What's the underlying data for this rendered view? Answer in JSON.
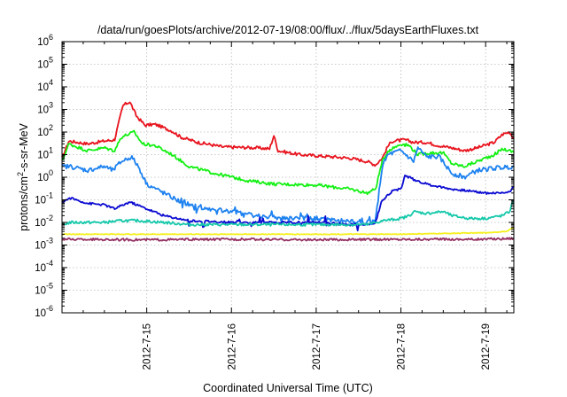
{
  "chart_data": {
    "type": "line",
    "title": "/data/run/goesPlots/archive/2012-07-19/08:00/flux/../flux/5daysEarthFluxes.txt",
    "xlabel": "Coordinated Universal Time (UTC)",
    "ylabel": {
      "prefix": "protons/cm",
      "sup": "2",
      "suffix": "-s-sr-MeV"
    },
    "x_range_days": [
      "2012-07-14 00:00",
      "2012-07-19 08:00"
    ],
    "x_ticks": [
      "2012-7-15",
      "2012-7-16",
      "2012-7-17",
      "2012-7-18",
      "2012-7-19"
    ],
    "y_scale": "log",
    "y_range_exp": [
      -6,
      6
    ],
    "y_ticks": [
      {
        "base": "10",
        "exp": "-6"
      },
      {
        "base": "10",
        "exp": "-5"
      },
      {
        "base": "10",
        "exp": "-4"
      },
      {
        "base": "10",
        "exp": "-3"
      },
      {
        "base": "10",
        "exp": "-2"
      },
      {
        "base": "10",
        "exp": "-1"
      },
      {
        "base": "10",
        "exp": "0"
      },
      {
        "base": "10",
        "exp": "1"
      },
      {
        "base": "10",
        "exp": "2"
      },
      {
        "base": "10",
        "exp": "3"
      },
      {
        "base": "10",
        "exp": "4"
      },
      {
        "base": "10",
        "exp": "5"
      },
      {
        "base": "10",
        "exp": "6"
      }
    ],
    "grid": true,
    "series": [
      {
        "color": "#e8141e",
        "noise": 0.07,
        "points": [
          [
            0.0,
            7
          ],
          [
            0.08,
            40
          ],
          [
            0.3,
            30
          ],
          [
            0.5,
            40
          ],
          [
            0.62,
            45
          ],
          [
            0.72,
            1500
          ],
          [
            0.8,
            2200
          ],
          [
            0.88,
            500
          ],
          [
            0.98,
            200
          ],
          [
            1.1,
            220
          ],
          [
            1.3,
            110
          ],
          [
            1.4,
            60
          ],
          [
            1.6,
            35
          ],
          [
            1.9,
            22
          ],
          [
            2.3,
            20
          ],
          [
            2.45,
            18
          ],
          [
            2.5,
            70
          ],
          [
            2.55,
            15
          ],
          [
            2.8,
            10
          ],
          [
            3.2,
            8
          ],
          [
            3.4,
            7
          ],
          [
            3.6,
            5
          ],
          [
            3.7,
            3.5
          ],
          [
            3.78,
            7
          ],
          [
            3.85,
            25
          ],
          [
            3.9,
            40
          ],
          [
            4.05,
            45
          ],
          [
            4.15,
            35
          ],
          [
            4.3,
            35
          ],
          [
            4.45,
            25
          ],
          [
            4.6,
            20
          ],
          [
            4.75,
            15
          ],
          [
            4.9,
            20
          ],
          [
            5.1,
            35
          ],
          [
            5.2,
            80
          ],
          [
            5.28,
            100
          ],
          [
            5.33,
            55
          ]
        ]
      },
      {
        "color": "#14f014",
        "noise": 0.07,
        "points": [
          [
            0.0,
            5
          ],
          [
            0.08,
            30
          ],
          [
            0.3,
            15
          ],
          [
            0.5,
            20
          ],
          [
            0.62,
            15
          ],
          [
            0.7,
            60
          ],
          [
            0.85,
            100
          ],
          [
            0.95,
            30
          ],
          [
            1.1,
            25
          ],
          [
            1.3,
            10
          ],
          [
            1.5,
            3
          ],
          [
            1.8,
            1.5
          ],
          [
            2.2,
            0.7
          ],
          [
            2.5,
            0.5
          ],
          [
            3.0,
            0.45
          ],
          [
            3.4,
            0.3
          ],
          [
            3.6,
            0.2
          ],
          [
            3.7,
            0.3
          ],
          [
            3.78,
            5
          ],
          [
            3.85,
            15
          ],
          [
            4.0,
            30
          ],
          [
            4.1,
            25
          ],
          [
            4.2,
            10
          ],
          [
            4.35,
            12
          ],
          [
            4.5,
            12
          ],
          [
            4.6,
            4
          ],
          [
            4.75,
            3
          ],
          [
            4.9,
            5
          ],
          [
            5.1,
            10
          ],
          [
            5.2,
            18
          ],
          [
            5.33,
            13
          ]
        ]
      },
      {
        "color": "#1e82f0",
        "noise": 0.1,
        "points": [
          [
            0.0,
            3
          ],
          [
            0.1,
            3
          ],
          [
            0.3,
            2
          ],
          [
            0.5,
            3
          ],
          [
            0.6,
            2
          ],
          [
            0.7,
            5
          ],
          [
            0.82,
            8
          ],
          [
            0.9,
            3
          ],
          [
            1.0,
            0.5
          ],
          [
            1.2,
            0.2
          ],
          [
            1.4,
            0.08
          ],
          [
            1.7,
            0.04
          ],
          [
            2.0,
            0.03
          ],
          [
            2.3,
            0.02
          ],
          [
            2.6,
            0.015
          ],
          [
            3.0,
            0.015
          ],
          [
            3.3,
            0.012
          ],
          [
            3.55,
            0.01
          ],
          [
            3.65,
            0.01
          ],
          [
            3.7,
            0.012
          ],
          [
            3.78,
            3
          ],
          [
            3.85,
            10
          ],
          [
            4.0,
            15
          ],
          [
            4.15,
            5
          ],
          [
            4.2,
            20
          ],
          [
            4.3,
            8
          ],
          [
            4.45,
            8
          ],
          [
            4.6,
            1.5
          ],
          [
            4.75,
            1
          ],
          [
            4.9,
            2
          ],
          [
            5.1,
            2.5
          ],
          [
            5.33,
            3
          ]
        ]
      },
      {
        "color": "#0a0ad2",
        "noise": 0.05,
        "points": [
          [
            0.0,
            0.08
          ],
          [
            0.1,
            0.12
          ],
          [
            0.3,
            0.07
          ],
          [
            0.5,
            0.06
          ],
          [
            0.62,
            0.04
          ],
          [
            0.8,
            0.08
          ],
          [
            1.0,
            0.04
          ],
          [
            1.2,
            0.02
          ],
          [
            1.5,
            0.012
          ],
          [
            2.0,
            0.01
          ],
          [
            2.5,
            0.01
          ],
          [
            3.0,
            0.01
          ],
          [
            3.4,
            0.008
          ],
          [
            3.6,
            0.008
          ],
          [
            3.7,
            0.01
          ],
          [
            3.78,
            0.1
          ],
          [
            3.9,
            0.25
          ],
          [
            4.0,
            0.3
          ],
          [
            4.05,
            1.2
          ],
          [
            4.15,
            0.8
          ],
          [
            4.3,
            0.5
          ],
          [
            4.5,
            0.35
          ],
          [
            4.6,
            0.3
          ],
          [
            4.8,
            0.25
          ],
          [
            5.0,
            0.2
          ],
          [
            5.2,
            0.2
          ],
          [
            5.3,
            0.25
          ],
          [
            5.33,
            0.4
          ]
        ]
      },
      {
        "color": "#14c8aa",
        "noise": 0.06,
        "points": [
          [
            0.0,
            0.008
          ],
          [
            0.1,
            0.01
          ],
          [
            0.5,
            0.01
          ],
          [
            0.7,
            0.012
          ],
          [
            0.9,
            0.012
          ],
          [
            1.2,
            0.01
          ],
          [
            1.5,
            0.008
          ],
          [
            2.0,
            0.008
          ],
          [
            2.5,
            0.008
          ],
          [
            3.0,
            0.008
          ],
          [
            3.4,
            0.008
          ],
          [
            3.6,
            0.008
          ],
          [
            3.8,
            0.012
          ],
          [
            4.0,
            0.015
          ],
          [
            4.1,
            0.02
          ],
          [
            4.15,
            0.03
          ],
          [
            4.3,
            0.025
          ],
          [
            4.5,
            0.03
          ],
          [
            4.6,
            0.02
          ],
          [
            4.8,
            0.015
          ],
          [
            5.0,
            0.015
          ],
          [
            5.2,
            0.02
          ],
          [
            5.28,
            0.03
          ],
          [
            5.33,
            0.1
          ]
        ]
      },
      {
        "color": "#f5f01e",
        "noise": 0.015,
        "points": [
          [
            0.0,
            0.003
          ],
          [
            1.0,
            0.003
          ],
          [
            2.0,
            0.003
          ],
          [
            3.0,
            0.003
          ],
          [
            4.0,
            0.003
          ],
          [
            5.0,
            0.0035
          ],
          [
            5.25,
            0.004
          ],
          [
            5.33,
            0.006
          ]
        ]
      },
      {
        "color": "#963264",
        "noise": 0.05,
        "points": [
          [
            0.0,
            0.0018
          ],
          [
            1.0,
            0.0017
          ],
          [
            2.0,
            0.0018
          ],
          [
            3.0,
            0.0017
          ],
          [
            4.0,
            0.0018
          ],
          [
            5.0,
            0.0018
          ],
          [
            5.33,
            0.002
          ]
        ]
      }
    ]
  }
}
